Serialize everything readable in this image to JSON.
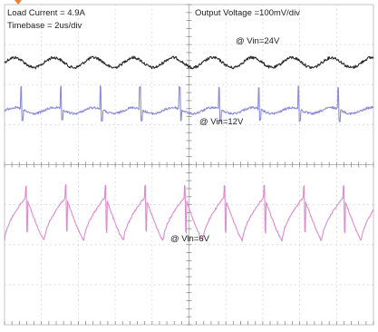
{
  "annotations": {
    "load_current": "Load Current = 4.9A",
    "timebase": "Timebase = 2us/div",
    "output_voltage": "Output Voltage =100mV/div",
    "vin_24": "@ Vin=24V",
    "vin_12": "@ Vin=12V",
    "vin_6": "@ Vin=6V"
  },
  "colors": {
    "background": "#ffffff",
    "grid": "#c9c9c9",
    "trigger_marker": "#f08030",
    "trace_24v": "#2a2a2a",
    "trace_12v": "#8c8cd8",
    "trace_6v": "#e08ad0"
  },
  "chart_data": {
    "type": "line",
    "title": "",
    "xlabel": "",
    "ylabel": "",
    "x_divisions": 10,
    "y_divisions": 8,
    "x_unit": "us",
    "x_per_div": 2,
    "y_unit": "mV",
    "y_per_div": 100,
    "xlim": [
      0,
      20
    ],
    "grid": true,
    "series": [
      {
        "name": "@ Vin=24V",
        "waveform": "sine-ripple",
        "period_us": 2.15,
        "ripple_mv_pp": 25,
        "spike_mv": 0,
        "offset_div": 2.9
      },
      {
        "name": "@ Vin=12V",
        "waveform": "spiky",
        "period_us": 2.15,
        "ripple_mv_pp": 15,
        "spike_mv": 55,
        "offset_div": 5.3
      },
      {
        "name": "@ Vin=6V",
        "waveform": "sawtooth",
        "period_us": 2.15,
        "ripple_mv_pp": 110,
        "spike_mv": 80,
        "offset_div": 10.7
      }
    ]
  }
}
